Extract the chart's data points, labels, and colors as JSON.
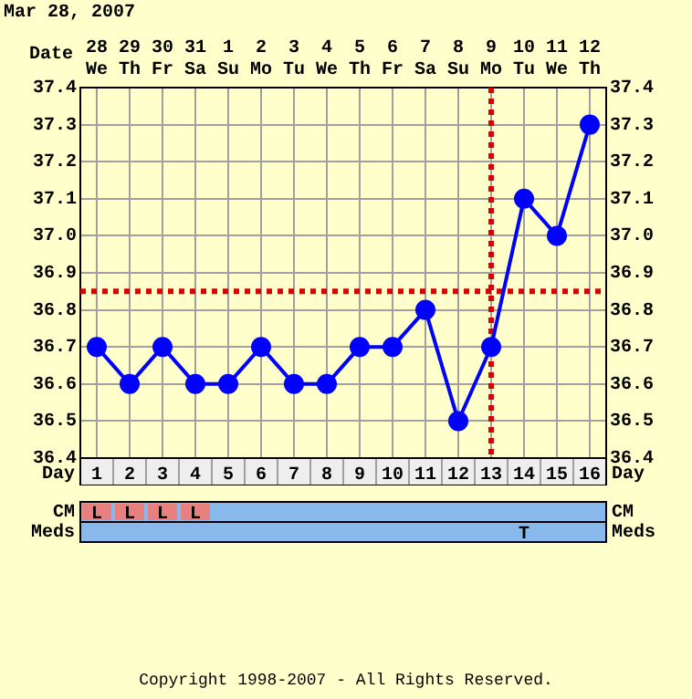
{
  "chart_data": [
    {
      "type": "line",
      "title": "Mar 28, 2007",
      "xlabel": "Date",
      "x2label": "Day",
      "categories": [
        "28 We",
        "29 Th",
        "30 Fr",
        "31 Sa",
        "1 Su",
        "2 Mo",
        "3 Tu",
        "4 We",
        "5 Th",
        "6 Fr",
        "7 Sa",
        "8 Su",
        "9 Mo",
        "10 Tu",
        "11 We",
        "12 Th"
      ],
      "series": [
        {
          "color": "#0000ff",
          "values": [
            36.7,
            36.6,
            36.7,
            36.6,
            36.6,
            36.7,
            36.6,
            36.6,
            36.7,
            36.7,
            36.8,
            36.5,
            36.7,
            37.1,
            37.0,
            37.3
          ]
        }
      ],
      "ylim": [
        36.4,
        37.4
      ],
      "yticks": [
        {
          "value": 36.4,
          "label": "36.4"
        },
        {
          "value": 36.5,
          "label": "36.5"
        },
        {
          "value": 36.6,
          "label": "36.6"
        },
        {
          "value": 36.7,
          "label": "36.7"
        },
        {
          "value": 36.8,
          "label": "36.8"
        },
        {
          "value": 36.9,
          "label": "36.9"
        },
        {
          "value": 37.0,
          "label": "37.0"
        },
        {
          "value": 37.1,
          "label": "37.1"
        },
        {
          "value": 37.2,
          "label": "37.2"
        },
        {
          "value": 37.3,
          "label": "37.3"
        },
        {
          "value": 37.4,
          "label": "37.4"
        }
      ],
      "y2lim": [
        36.4,
        37.4
      ],
      "y2ticks": [
        {
          "value": 36.4,
          "label": "36.4"
        },
        {
          "value": 36.5,
          "label": "36.5"
        },
        {
          "value": 36.6,
          "label": "36.6"
        },
        {
          "value": 36.7,
          "label": "36.7"
        },
        {
          "value": 36.8,
          "label": "36.8"
        },
        {
          "value": 36.9,
          "label": "36.9"
        },
        {
          "value": 37.0,
          "label": "37.0"
        },
        {
          "value": 37.1,
          "label": "37.1"
        },
        {
          "value": 37.2,
          "label": "37.2"
        },
        {
          "value": 37.3,
          "label": "37.3"
        },
        {
          "value": 37.4,
          "label": "37.4"
        }
      ],
      "x2lim": [
        0.5,
        16.5
      ],
      "x2ticks": [
        1,
        2,
        3,
        4,
        5,
        6,
        7,
        8,
        9,
        10,
        11,
        12,
        13,
        14,
        15,
        16
      ],
      "grid": true,
      "legend": false,
      "marker": "circle",
      "line_style": "solid",
      "ref_lines": [
        {
          "axis": "y",
          "value": 36.85,
          "color": "#dd0000",
          "line_style": "dotted"
        },
        {
          "axis": "x",
          "value": "9 Mo",
          "color": "#dd0000",
          "line_style": "dotted"
        }
      ]
    },
    {
      "type": "heatmap",
      "categories": [
        null,
        null,
        null,
        null,
        null,
        null,
        null,
        null,
        null,
        null,
        null,
        null,
        null,
        null,
        null,
        null
      ],
      "y_categories": [
        "CM",
        "Meds"
      ],
      "y2_categories": [
        "CM",
        "Meds"
      ],
      "cells": [
        [
          null,
          null,
          null,
          null,
          null,
          null,
          null,
          null,
          null,
          null,
          null,
          null,
          null,
          null,
          null,
          null
        ],
        [
          null,
          null,
          null,
          null,
          null,
          null,
          null,
          null,
          null,
          null,
          null,
          null,
          null,
          null,
          null,
          null
        ]
      ],
      "cell_labels": [
        [
          "L",
          "L",
          "L",
          "L",
          null,
          null,
          null,
          null,
          null,
          null,
          null,
          null,
          null,
          null,
          null,
          null
        ],
        [
          null,
          null,
          null,
          null,
          null,
          null,
          null,
          null,
          null,
          null,
          null,
          null,
          null,
          "T",
          null,
          null
        ]
      ],
      "annotations": [
        "Copyright 1998-2007 - All Rights Reserved."
      ]
    }
  ]
}
